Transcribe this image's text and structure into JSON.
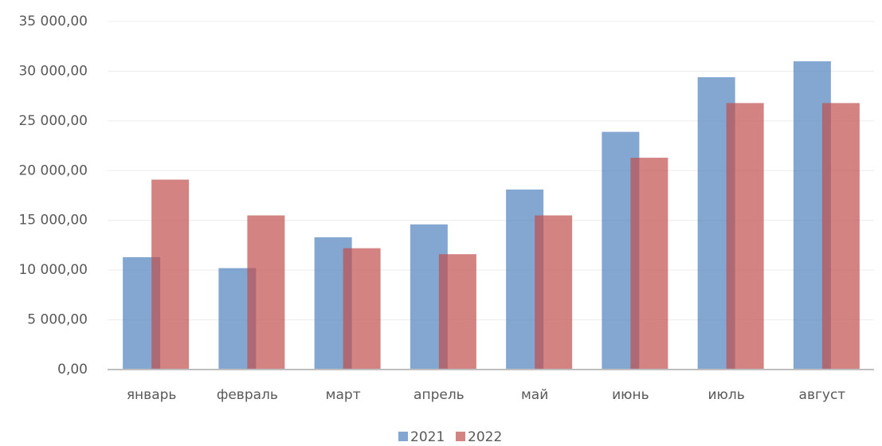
{
  "chart_data": {
    "type": "bar",
    "categories": [
      "январь",
      "февраль",
      "март",
      "апрель",
      "май",
      "июнь",
      "июль",
      "август"
    ],
    "series": [
      {
        "name": "2021",
        "color": "#4f81bd",
        "values": [
          11300,
          10200,
          13300,
          14600,
          18100,
          23900,
          29400,
          31000
        ]
      },
      {
        "name": "2022",
        "color": "#c0504d",
        "values": [
          19100,
          15500,
          12200,
          11600,
          15500,
          21300,
          26800,
          26800
        ]
      }
    ],
    "ylim": [
      0,
      35000
    ],
    "yticks": [
      {
        "value": 0,
        "label": "0,00"
      },
      {
        "value": 5000,
        "label": "5 000,00"
      },
      {
        "value": 10000,
        "label": "10 000,00"
      },
      {
        "value": 15000,
        "label": "15 000,00"
      },
      {
        "value": 20000,
        "label": "20 000,00"
      },
      {
        "value": 25000,
        "label": "25 000,00"
      },
      {
        "value": 30000,
        "label": "30 000,00"
      },
      {
        "value": 35000,
        "label": "35 000,00"
      }
    ],
    "grid": true,
    "legend": "bottom"
  }
}
